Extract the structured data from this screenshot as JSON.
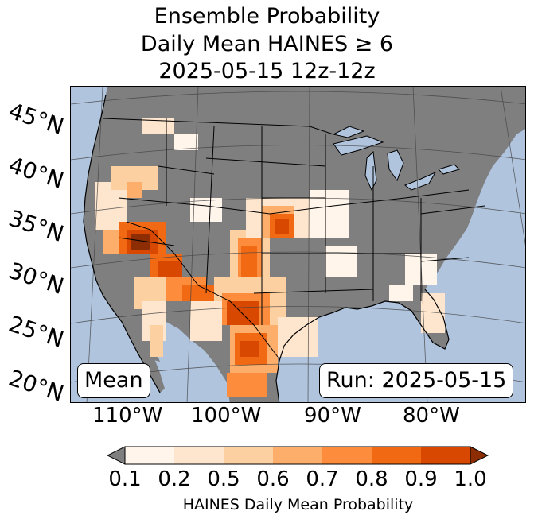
{
  "title": {
    "line1": "Ensemble Probability",
    "line2": "Daily Mean HAINES ≥ 6",
    "line3": "2025-05-15 12z-12z"
  },
  "map": {
    "lat_labels": [
      "45°N",
      "40°N",
      "35°N",
      "30°N",
      "25°N",
      "20°N"
    ],
    "lon_labels": [
      "110°W",
      "100°W",
      "90°W",
      "80°W"
    ],
    "stat_label": "Mean",
    "run_label": "Run: 2025-05-15",
    "colors": {
      "ocean": "#b0c4de",
      "land_no_data": "#7f7f7f",
      "p_0_1": "#fff5eb",
      "p_0_2": "#fee6ce",
      "p_0_5": "#fdd0a2",
      "p_0_6": "#fdae6b",
      "p_0_7": "#fd8d3c",
      "p_0_8": "#f16913",
      "p_0_9": "#d94801",
      "p_1_0": "#8c2d04"
    }
  },
  "colorbar": {
    "ticks": [
      "0.1",
      "0.2",
      "0.5",
      "0.6",
      "0.7",
      "0.8",
      "0.9",
      "1.0"
    ],
    "label": "HAINES Daily Mean Probability",
    "colors": [
      "#fff5eb",
      "#fee6ce",
      "#fdd0a2",
      "#fdae6b",
      "#fd8d3c",
      "#f16913",
      "#d94801"
    ],
    "under_color": "#7f7f7f",
    "over_color": "#8c2d04"
  }
}
